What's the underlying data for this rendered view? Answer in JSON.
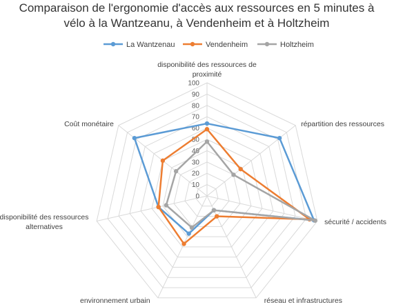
{
  "chart_data": {
    "type": "radar",
    "title_lines": [
      "Comparaison de l'ergonomie d'accès aux ressources en 5 minutes à",
      "vélo à la Wantzeanu, à Vendenheim et à Holtzheim"
    ],
    "axes": [
      [
        "disponibilité des ressources de",
        "proximité"
      ],
      [
        "répartition des ressources"
      ],
      [
        "sécurité / accidents"
      ],
      [
        "réseau et infrastructures"
      ],
      [
        "environnement urbain"
      ],
      [
        "disponibilité des ressources",
        "alternatives"
      ],
      [
        "Coût monétaire"
      ]
    ],
    "r_ticks": [
      "0",
      "10",
      "20",
      "30",
      "40",
      "50",
      "60",
      "70",
      "80",
      "90",
      "100"
    ],
    "r_range": [
      0,
      100
    ],
    "grid": true,
    "legend_position": "top",
    "series": [
      {
        "name": "La Wantzenau",
        "color": "#5B9BD5",
        "values": [
          64,
          82,
          97,
          14,
          37,
          44,
          82
        ]
      },
      {
        "name": "Vendenheim",
        "color": "#ED7D31",
        "values": [
          59,
          38,
          93,
          20,
          47,
          44,
          50
        ]
      },
      {
        "name": "Holtzheim",
        "color": "#A5A5A5",
        "values": [
          48,
          30,
          98,
          14,
          31,
          37,
          35
        ]
      }
    ]
  }
}
